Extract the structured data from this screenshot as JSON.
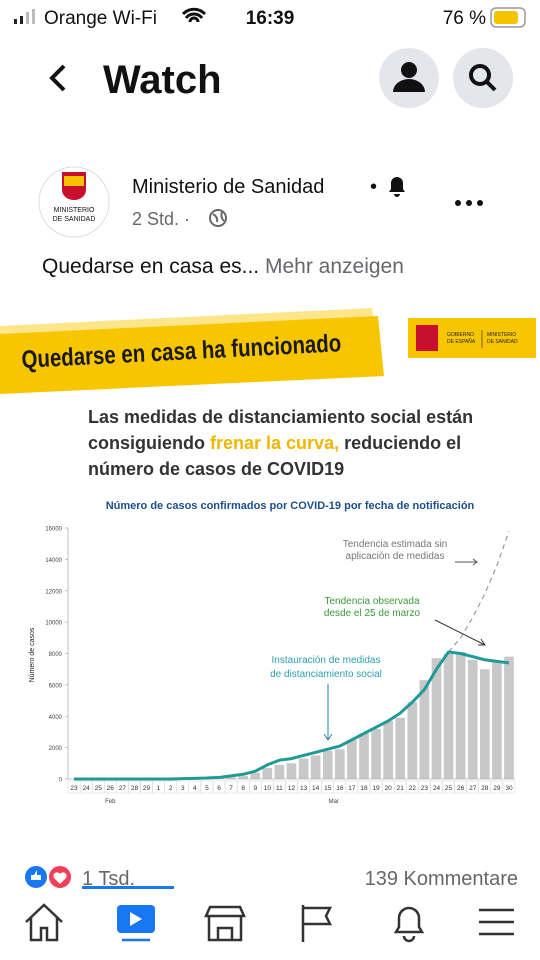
{
  "status_bar": {
    "carrier": "Orange Wi-Fi",
    "time": "16:39",
    "battery": "76 %"
  },
  "header": {
    "title": "Watch"
  },
  "post": {
    "author": "Ministerio de Sanidad",
    "separator": "•",
    "time": "2 Std. ·",
    "avatar_text": [
      "MINISTERIO",
      "DE SANIDAD"
    ],
    "text": "Quedarse en casa es...",
    "more": "Mehr anzeigen"
  },
  "image": {
    "banner": "Quedarse en casa ha funcionado",
    "logo": [
      "GOBIERNO",
      "DE ESPAÑA",
      "MINISTERIO",
      "DE SANIDAD"
    ],
    "headline": [
      [
        "Las medidas de distanciamiento social están"
      ],
      [
        "consiguiendo ",
        "frenar la curva,",
        " reduciendo el"
      ],
      [
        "número de casos de COVID19"
      ]
    ]
  },
  "chart_data": {
    "type": "bar",
    "title": "Número de casos confirmados por COVID-19 por fecha de notificación",
    "y_label": "Número de casos",
    "categories": [
      "23",
      "24",
      "25",
      "26",
      "27",
      "28",
      "29",
      "1",
      "2",
      "3",
      "4",
      "5",
      "6",
      "7",
      "8",
      "9",
      "10",
      "11",
      "12",
      "13",
      "14",
      "15",
      "16",
      "17",
      "18",
      "19",
      "20",
      "21",
      "22",
      "23",
      "24",
      "25",
      "26",
      "27",
      "28",
      "29",
      "30"
    ],
    "month_labels": [
      "Feb",
      "Mar"
    ],
    "values": [
      0,
      0,
      0,
      0,
      0,
      0,
      0,
      10,
      15,
      20,
      30,
      40,
      60,
      100,
      200,
      400,
      700,
      900,
      1000,
      1300,
      1500,
      1800,
      1900,
      2500,
      2900,
      3200,
      3700,
      3900,
      4900,
      6300,
      7700,
      8000,
      8100,
      7600,
      7000,
      7500,
      7800
    ],
    "color": "#c8c8c8",
    "trend": {
      "color": "#1f9a96",
      "values": [
        0,
        0,
        0,
        0,
        0,
        0,
        0,
        0,
        0,
        20,
        40,
        60,
        100,
        200,
        300,
        500,
        900,
        1200,
        1300,
        1500,
        1700,
        1900,
        2100,
        2500,
        2900,
        3300,
        3700,
        4200,
        4900,
        5700,
        7000,
        8100,
        8000,
        7800,
        7600,
        7500,
        7400
      ]
    },
    "projection": {
      "color": "#9a9a9a",
      "values": [
        null,
        null,
        null,
        null,
        null,
        null,
        null,
        null,
        null,
        null,
        null,
        null,
        null,
        null,
        null,
        null,
        null,
        null,
        null,
        null,
        null,
        null,
        null,
        null,
        null,
        null,
        null,
        null,
        null,
        null,
        null,
        8100,
        9000,
        10300,
        11800,
        13600,
        15800
      ]
    },
    "annotations": [
      [
        "Tendencia estimada sin",
        "aplicación de medidas"
      ],
      [
        "Tendencia observada",
        "desde el 25 de marzo"
      ],
      [
        "Instauración de medidas",
        "de distanciamiento social"
      ]
    ],
    "ylim": [
      0,
      16000
    ],
    "yticks": [
      0,
      2000,
      4000,
      6000,
      8000,
      10000,
      12000,
      14000,
      16000
    ]
  },
  "footer": {
    "reactions": "1 Tsd.",
    "comments": "139 Kommentare"
  }
}
